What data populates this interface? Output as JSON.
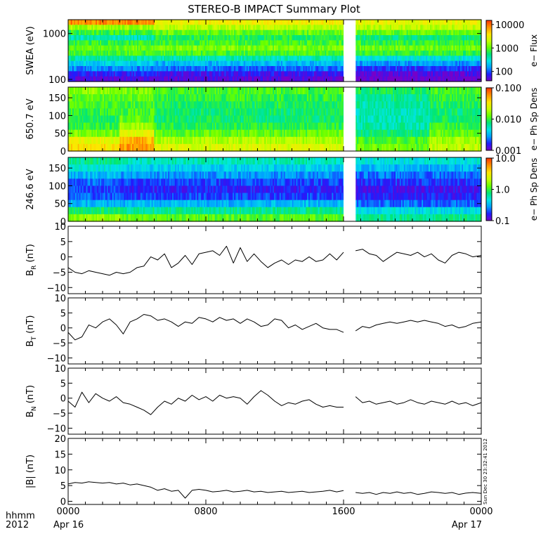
{
  "title": "STEREO-B IMPACT Summary Plot",
  "footer": {
    "left_top": "hhmm",
    "left_bottom": "2012",
    "start_date": "Apr 16",
    "end_date": "Apr 17"
  },
  "timestamp_text": "Sun Dec 30 23:32:41 2012",
  "colors": {
    "trace": "#000000",
    "colormap": [
      "#7800c8",
      "#1e1eff",
      "#00a0ff",
      "#00e6e6",
      "#00e678",
      "#64ff00",
      "#c8ff00",
      "#ffe600",
      "#ff9600",
      "#ff3200"
    ],
    "gap": "#ffffff"
  },
  "chart_data": [
    {
      "type": "heatmap",
      "name": "swea-spectrogram",
      "ylabel": "SWEA (eV)",
      "yscale": "log",
      "ylim": [
        90,
        2000
      ],
      "yticks": [
        100,
        1000
      ],
      "ytick_labels": [
        "100",
        "1000"
      ],
      "colorbar": {
        "label": "e− Flux",
        "scale": "log",
        "range": [
          40,
          15000
        ],
        "ticks": [
          100,
          1000,
          10000
        ],
        "tick_labels": [
          "100",
          "1000",
          "10000"
        ]
      },
      "x_range": [
        0,
        24
      ],
      "data_gap": [
        16.0,
        16.7
      ],
      "time_blocks": [
        {
          "t": [
            0,
            5
          ],
          "rows": [
            0.9,
            0.62,
            0.5,
            0.38,
            0.5,
            0.55,
            0.52,
            0.4,
            0.3,
            0.2,
            0.1,
            0.05
          ]
        },
        {
          "t": [
            5,
            16
          ],
          "rows": [
            0.75,
            0.66,
            0.55,
            0.48,
            0.52,
            0.58,
            0.52,
            0.38,
            0.26,
            0.17,
            0.08,
            0.04
          ]
        },
        {
          "t": [
            16.7,
            24
          ],
          "rows": [
            0.72,
            0.66,
            0.55,
            0.44,
            0.5,
            0.56,
            0.5,
            0.34,
            0.22,
            0.12,
            0.05,
            0.0
          ]
        }
      ]
    },
    {
      "type": "heatmap",
      "name": "pad-650-spectrogram",
      "ylabel": "650.7 eV",
      "ylim": [
        0,
        180
      ],
      "yticks": [
        0,
        50,
        100,
        150
      ],
      "ytick_labels": [
        "0",
        "50",
        "100",
        "150"
      ],
      "colorbar": {
        "label": "e− Ph Sp Dens",
        "scale": "log",
        "range": [
          0.001,
          0.1
        ],
        "ticks": [
          0.001,
          0.01,
          0.1
        ],
        "tick_labels": [
          "0.001",
          "0.010",
          "0.100"
        ]
      },
      "x_range": [
        0,
        24
      ],
      "data_gap": [
        16.0,
        16.7
      ],
      "time_blocks": [
        {
          "t": [
            0,
            3
          ],
          "rows": [
            0.6,
            0.55,
            0.52,
            0.5,
            0.48,
            0.5,
            0.58,
            0.72,
            0.78
          ]
        },
        {
          "t": [
            3,
            5
          ],
          "rows": [
            0.58,
            0.55,
            0.52,
            0.52,
            0.55,
            0.62,
            0.72,
            0.85,
            0.88
          ]
        },
        {
          "t": [
            5,
            16
          ],
          "rows": [
            0.52,
            0.5,
            0.47,
            0.45,
            0.45,
            0.48,
            0.55,
            0.64,
            0.7
          ]
        },
        {
          "t": [
            16.7,
            21
          ],
          "rows": [
            0.46,
            0.43,
            0.4,
            0.38,
            0.38,
            0.4,
            0.44,
            0.52,
            0.56
          ]
        },
        {
          "t": [
            21,
            24
          ],
          "rows": [
            0.52,
            0.5,
            0.47,
            0.45,
            0.46,
            0.5,
            0.55,
            0.62,
            0.66
          ]
        }
      ]
    },
    {
      "type": "heatmap",
      "name": "pad-246-spectrogram",
      "ylabel": "246.6 eV",
      "ylim": [
        0,
        180
      ],
      "yticks": [
        0,
        50,
        100,
        150
      ],
      "ytick_labels": [
        "0",
        "50",
        "100",
        "150"
      ],
      "colorbar": {
        "label": "e− Ph Sp Dens",
        "scale": "log",
        "range": [
          0.1,
          10
        ],
        "ticks": [
          0.1,
          1,
          10
        ],
        "tick_labels": [
          "0.1",
          "1.0",
          "10.0"
        ]
      },
      "x_range": [
        0,
        24
      ],
      "data_gap": [
        16.0,
        16.7
      ],
      "time_blocks": [
        {
          "t": [
            0,
            3
          ],
          "rows": [
            0.42,
            0.34,
            0.26,
            0.18,
            0.14,
            0.16,
            0.26,
            0.45,
            0.6
          ]
        },
        {
          "t": [
            3,
            16
          ],
          "rows": [
            0.38,
            0.3,
            0.22,
            0.14,
            0.1,
            0.14,
            0.26,
            0.42,
            0.54
          ]
        },
        {
          "t": [
            16.7,
            24
          ],
          "rows": [
            0.34,
            0.26,
            0.18,
            0.12,
            0.08,
            0.1,
            0.18,
            0.32,
            0.42
          ]
        }
      ]
    },
    {
      "type": "line",
      "name": "br-panel",
      "ylabel": "B_R (nT)",
      "ylim": [
        -12,
        10
      ],
      "yticks": [
        -10,
        -5,
        0,
        5,
        10
      ],
      "ytick_labels": [
        "−10",
        "−5",
        "0",
        "5",
        "10"
      ],
      "x": [
        0.0,
        0.4,
        0.8,
        1.2,
        1.6,
        2.0,
        2.4,
        2.8,
        3.2,
        3.6,
        4.0,
        4.4,
        4.8,
        5.2,
        5.6,
        6.0,
        6.4,
        6.8,
        7.2,
        7.6,
        8.0,
        8.4,
        8.8,
        9.2,
        9.6,
        10.0,
        10.4,
        10.8,
        11.2,
        11.6,
        12.0,
        12.4,
        12.8,
        13.2,
        13.6,
        14.0,
        14.4,
        14.8,
        15.2,
        15.6,
        16.0
      ],
      "values": [
        -3.5,
        -5.0,
        -5.5,
        -4.5,
        -5.0,
        -5.5,
        -6.0,
        -5.0,
        -5.5,
        -5.0,
        -3.5,
        -3.0,
        0.0,
        -1.0,
        1.0,
        -3.5,
        -2.0,
        0.5,
        -2.5,
        1.0,
        1.5,
        2.0,
        0.5,
        3.5,
        -2.0,
        3.0,
        -1.5,
        1.0,
        -1.5,
        -3.5,
        -2.0,
        -1.0,
        -2.5,
        -1.0,
        -1.5,
        0.0,
        -1.5,
        -1.0,
        1.0,
        -1.0,
        1.5
      ],
      "segment2": {
        "x": [
          16.7,
          17.1,
          17.5,
          17.9,
          18.3,
          18.7,
          19.1,
          19.5,
          19.9,
          20.3,
          20.7,
          21.1,
          21.5,
          21.9,
          22.3,
          22.7,
          23.1,
          23.5,
          24.0
        ],
        "values": [
          2.0,
          2.5,
          1.0,
          0.5,
          -1.5,
          0.0,
          1.5,
          1.0,
          0.5,
          1.5,
          0.0,
          1.0,
          -1.0,
          -2.0,
          0.5,
          1.5,
          1.0,
          0.0,
          0.5
        ]
      }
    },
    {
      "type": "line",
      "name": "bt-panel",
      "ylabel": "B_T (nT)",
      "ylim": [
        -12,
        10
      ],
      "yticks": [
        -10,
        -5,
        0,
        5,
        10
      ],
      "ytick_labels": [
        "−10",
        "−5",
        "0",
        "5",
        "10"
      ],
      "x": [
        0.0,
        0.4,
        0.8,
        1.2,
        1.6,
        2.0,
        2.4,
        2.8,
        3.2,
        3.6,
        4.0,
        4.4,
        4.8,
        5.2,
        5.6,
        6.0,
        6.4,
        6.8,
        7.2,
        7.6,
        8.0,
        8.4,
        8.8,
        9.2,
        9.6,
        10.0,
        10.4,
        10.8,
        11.2,
        11.6,
        12.0,
        12.4,
        12.8,
        13.2,
        13.6,
        14.0,
        14.4,
        14.8,
        15.2,
        15.6,
        16.0
      ],
      "values": [
        -1.5,
        -4.0,
        -3.0,
        1.0,
        0.0,
        2.0,
        3.0,
        1.0,
        -2.0,
        2.0,
        3.0,
        4.5,
        4.0,
        2.5,
        3.0,
        2.0,
        0.5,
        2.0,
        1.5,
        3.5,
        3.0,
        2.0,
        3.5,
        2.5,
        3.0,
        1.5,
        3.0,
        2.0,
        0.5,
        1.0,
        3.0,
        2.5,
        0.0,
        1.0,
        -0.5,
        0.5,
        1.5,
        0.0,
        -0.5,
        -0.5,
        -1.5
      ],
      "segment2": {
        "x": [
          16.7,
          17.1,
          17.5,
          17.9,
          18.3,
          18.7,
          19.1,
          19.5,
          19.9,
          20.3,
          20.7,
          21.1,
          21.5,
          21.9,
          22.3,
          22.7,
          23.1,
          23.5,
          24.0
        ],
        "values": [
          -1.0,
          0.5,
          0.0,
          1.0,
          1.5,
          2.0,
          1.5,
          2.0,
          2.5,
          2.0,
          2.5,
          2.0,
          1.5,
          0.5,
          1.0,
          0.0,
          0.5,
          1.5,
          2.0
        ]
      }
    },
    {
      "type": "line",
      "name": "bn-panel",
      "ylabel": "B_N (nT)",
      "ylim": [
        -12,
        10
      ],
      "yticks": [
        -10,
        -5,
        0,
        5,
        10
      ],
      "ytick_labels": [
        "−10",
        "−5",
        "0",
        "5",
        "10"
      ],
      "x": [
        0.0,
        0.4,
        0.8,
        1.2,
        1.6,
        2.0,
        2.4,
        2.8,
        3.2,
        3.6,
        4.0,
        4.4,
        4.8,
        5.2,
        5.6,
        6.0,
        6.4,
        6.8,
        7.2,
        7.6,
        8.0,
        8.4,
        8.8,
        9.2,
        9.6,
        10.0,
        10.4,
        10.8,
        11.2,
        11.6,
        12.0,
        12.4,
        12.8,
        13.2,
        13.6,
        14.0,
        14.4,
        14.8,
        15.2,
        15.6,
        16.0
      ],
      "values": [
        -1.0,
        -3.0,
        2.0,
        -1.5,
        1.5,
        0.0,
        -1.0,
        0.5,
        -1.5,
        -2.0,
        -3.0,
        -4.0,
        -5.5,
        -3.0,
        -1.0,
        -2.0,
        0.0,
        -1.0,
        1.0,
        -0.5,
        0.5,
        -1.0,
        1.0,
        0.0,
        0.5,
        0.0,
        -2.0,
        0.5,
        2.5,
        1.0,
        -1.0,
        -2.5,
        -1.5,
        -2.0,
        -1.0,
        -0.5,
        -2.0,
        -3.0,
        -2.5,
        -3.0,
        -3.0
      ],
      "segment2": {
        "x": [
          16.7,
          17.1,
          17.5,
          17.9,
          18.3,
          18.7,
          19.1,
          19.5,
          19.9,
          20.3,
          20.7,
          21.1,
          21.5,
          21.9,
          22.3,
          22.7,
          23.1,
          23.5,
          24.0
        ],
        "values": [
          0.5,
          -1.5,
          -1.0,
          -2.0,
          -1.5,
          -1.0,
          -2.0,
          -1.5,
          -0.5,
          -1.5,
          -2.0,
          -1.0,
          -1.5,
          -2.0,
          -1.0,
          -2.0,
          -1.5,
          -2.5,
          -1.5
        ]
      }
    },
    {
      "type": "line",
      "name": "bmag-panel",
      "ylabel": "|B| (nT)",
      "ylim": [
        -1,
        20
      ],
      "yticks": [
        0,
        5,
        10,
        15,
        20
      ],
      "ytick_labels": [
        "0",
        "5",
        "10",
        "15",
        "20"
      ],
      "x": [
        0.0,
        0.4,
        0.8,
        1.2,
        1.6,
        2.0,
        2.4,
        2.8,
        3.2,
        3.6,
        4.0,
        4.4,
        4.8,
        5.2,
        5.6,
        6.0,
        6.4,
        6.8,
        7.2,
        7.6,
        8.0,
        8.4,
        8.8,
        9.2,
        9.6,
        10.0,
        10.4,
        10.8,
        11.2,
        11.6,
        12.0,
        12.4,
        12.8,
        13.2,
        13.6,
        14.0,
        14.4,
        14.8,
        15.2,
        15.6,
        16.0
      ],
      "values": [
        5.5,
        6.0,
        5.8,
        6.2,
        6.0,
        5.8,
        6.0,
        5.5,
        5.8,
        5.2,
        5.5,
        5.0,
        4.5,
        3.5,
        4.0,
        3.2,
        3.5,
        1.0,
        3.5,
        3.8,
        3.5,
        3.0,
        3.2,
        3.5,
        3.0,
        3.2,
        3.5,
        3.0,
        3.2,
        2.8,
        3.0,
        3.2,
        2.8,
        3.0,
        3.2,
        2.8,
        3.0,
        3.2,
        3.5,
        3.0,
        3.4
      ],
      "segment2": {
        "x": [
          16.7,
          17.1,
          17.5,
          17.9,
          18.3,
          18.7,
          19.1,
          19.5,
          19.9,
          20.3,
          20.7,
          21.1,
          21.5,
          21.9,
          22.3,
          22.7,
          23.1,
          23.5,
          24.0
        ],
        "values": [
          2.8,
          2.5,
          2.8,
          2.2,
          2.8,
          2.5,
          3.0,
          2.5,
          2.8,
          2.2,
          2.5,
          3.0,
          2.8,
          2.5,
          2.8,
          2.2,
          2.6,
          2.8,
          2.5
        ]
      }
    }
  ],
  "x_axis": {
    "range": [
      0,
      24
    ],
    "major_ticks": [
      0,
      8,
      16,
      24
    ],
    "tick_labels": [
      "0000",
      "0800",
      "1600",
      "0000"
    ],
    "minor_step": 1
  }
}
